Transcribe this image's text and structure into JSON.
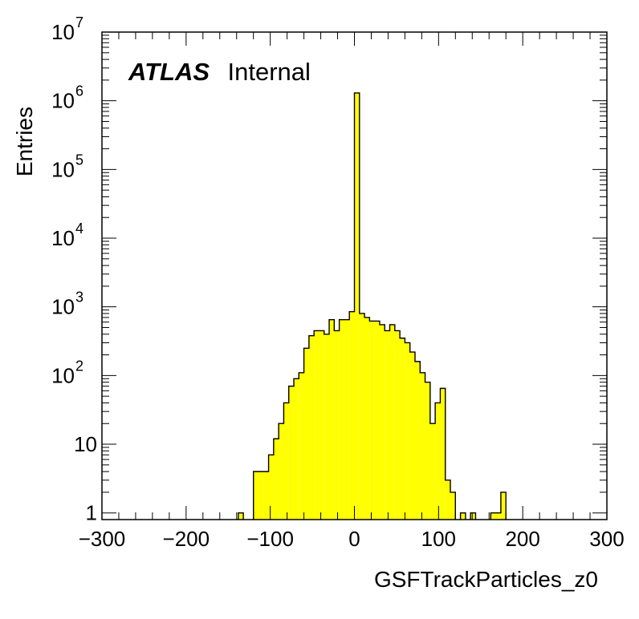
{
  "chart_data": {
    "type": "bar",
    "subtype": "histogram",
    "xlabel": "GSFTrackParticles_z0",
    "ylabel": "Entries",
    "xlim": [
      -300,
      300
    ],
    "ylim": [
      0.8,
      10000000
    ],
    "yscale": "log",
    "grid": false,
    "legend": "none",
    "fill_color": "#ffff00",
    "line_color": "#000000",
    "annotation": {
      "bold": "ATLAS",
      "text": "Internal"
    },
    "x_ticks": [
      "−300",
      "−200",
      "−100",
      "0",
      "100",
      "200",
      "300"
    ],
    "y_ticks": [
      {
        "value": 1,
        "label": "1"
      },
      {
        "value": 10,
        "label": "10"
      },
      {
        "value": 100,
        "label": "10",
        "exp": "2"
      },
      {
        "value": 1000,
        "label": "10",
        "exp": "3"
      },
      {
        "value": 10000,
        "label": "10",
        "exp": "4"
      },
      {
        "value": 100000,
        "label": "10",
        "exp": "5"
      },
      {
        "value": 1000000,
        "label": "10",
        "exp": "6"
      },
      {
        "value": 10000000,
        "label": "10",
        "exp": "7"
      }
    ],
    "bin_width": 6,
    "bins": [
      {
        "x": -138,
        "y": 1
      },
      {
        "x": -120,
        "y": 4
      },
      {
        "x": -114,
        "y": 4
      },
      {
        "x": -108,
        "y": 4
      },
      {
        "x": -102,
        "y": 7
      },
      {
        "x": -96,
        "y": 12
      },
      {
        "x": -90,
        "y": 20
      },
      {
        "x": -84,
        "y": 40
      },
      {
        "x": -78,
        "y": 70
      },
      {
        "x": -72,
        "y": 90
      },
      {
        "x": -66,
        "y": 110
      },
      {
        "x": -60,
        "y": 250
      },
      {
        "x": -54,
        "y": 380
      },
      {
        "x": -48,
        "y": 450
      },
      {
        "x": -42,
        "y": 450
      },
      {
        "x": -36,
        "y": 400
      },
      {
        "x": -30,
        "y": 650
      },
      {
        "x": -24,
        "y": 450
      },
      {
        "x": -18,
        "y": 650
      },
      {
        "x": -12,
        "y": 650
      },
      {
        "x": -6,
        "y": 850
      },
      {
        "x": 0,
        "y": 1300000
      },
      {
        "x": 6,
        "y": 800
      },
      {
        "x": 12,
        "y": 700
      },
      {
        "x": 18,
        "y": 620
      },
      {
        "x": 24,
        "y": 620
      },
      {
        "x": 30,
        "y": 550
      },
      {
        "x": 36,
        "y": 450
      },
      {
        "x": 42,
        "y": 550
      },
      {
        "x": 48,
        "y": 450
      },
      {
        "x": 54,
        "y": 350
      },
      {
        "x": 60,
        "y": 300
      },
      {
        "x": 66,
        "y": 220
      },
      {
        "x": 72,
        "y": 160
      },
      {
        "x": 78,
        "y": 110
      },
      {
        "x": 84,
        "y": 80
      },
      {
        "x": 90,
        "y": 20
      },
      {
        "x": 96,
        "y": 40
      },
      {
        "x": 102,
        "y": 65
      },
      {
        "x": 108,
        "y": 3
      },
      {
        "x": 114,
        "y": 2
      },
      {
        "x": 126,
        "y": 1
      },
      {
        "x": 138,
        "y": 1
      },
      {
        "x": 162,
        "y": 1
      },
      {
        "x": 168,
        "y": 1
      },
      {
        "x": 174,
        "y": 2
      }
    ]
  }
}
